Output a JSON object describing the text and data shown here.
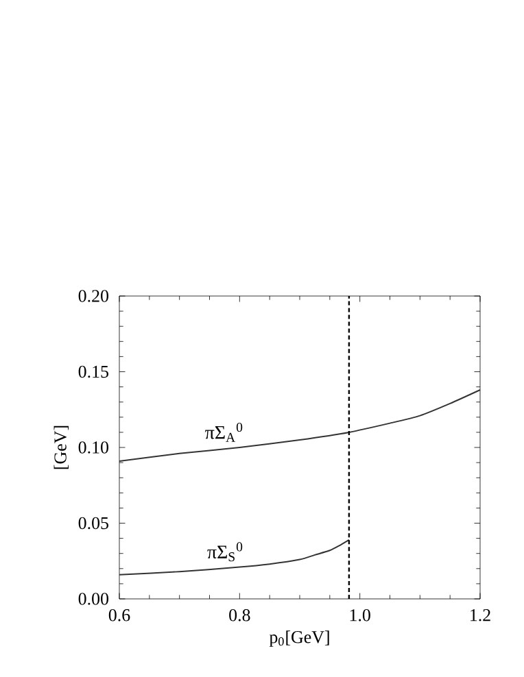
{
  "chart_data": {
    "type": "line",
    "xlabel": "p$_{0}$[GeV]",
    "ylabel": "[GeV]",
    "xlim": [
      0.6,
      1.2
    ],
    "ylim": [
      0,
      0.2
    ],
    "xticks": [
      0.6,
      0.8,
      {
        "value": 1.0,
        "label": "1.0"
      },
      1.2
    ],
    "yticks": [
      {
        "value": 0,
        "label": "0.00"
      },
      0.05,
      {
        "value": 0.1,
        "label": "0.10"
      },
      0.15,
      {
        "value": 0.2,
        "label": "0.20"
      }
    ],
    "series": [
      {
        "name": "πΣ$_{A}$$^{0}$",
        "color": "#333333",
        "x": [
          0.6,
          0.7,
          0.8,
          0.9,
          0.982,
          1.05,
          1.1,
          1.15,
          1.2
        ],
        "values": [
          0.091,
          0.096,
          0.1,
          0.105,
          0.11,
          0.116,
          0.121,
          0.129,
          0.138
        ]
      },
      {
        "name": "πΣ$_{S}$$^{0}$",
        "color": "#333333",
        "x": [
          0.6,
          0.7,
          0.8,
          0.85,
          0.9,
          0.925,
          0.95,
          0.965,
          0.982
        ],
        "values": [
          0.016,
          0.018,
          0.021,
          0.023,
          0.026,
          0.029,
          0.032,
          0.035,
          0.039
        ]
      }
    ],
    "ref_lines": [
      {
        "axis": "x",
        "value": 0.982,
        "line_style": "dashed",
        "color": "#000000"
      }
    ],
    "grid": false,
    "legend": false,
    "marker": "none",
    "line_style": "solid"
  }
}
